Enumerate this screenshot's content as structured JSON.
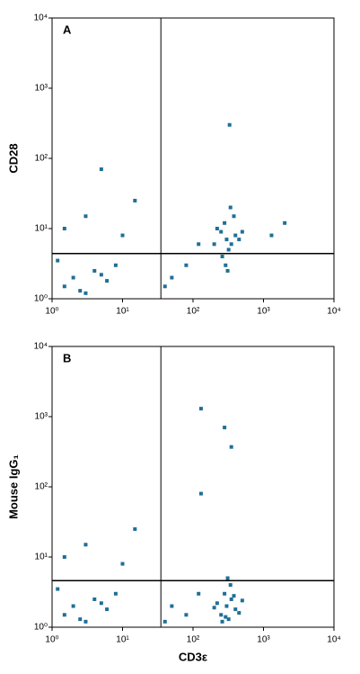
{
  "chart_data": [
    {
      "type": "scatter",
      "title": "A",
      "y_label": "CD28",
      "log": true,
      "color": "#1f6f96",
      "xlim": [
        1,
        10000
      ],
      "ylim": [
        1,
        10000
      ],
      "xticks": [
        {
          "value": 1,
          "label": "10⁰"
        },
        {
          "value": 10,
          "label": "10¹"
        },
        {
          "value": 100,
          "label": "10²"
        },
        {
          "value": 1000,
          "label": "10³"
        },
        {
          "value": 10000,
          "label": "10⁴"
        }
      ],
      "yticks": [
        {
          "value": 1,
          "label": "10⁰"
        },
        {
          "value": 10,
          "label": "10¹"
        },
        {
          "value": 100,
          "label": "10²"
        },
        {
          "value": 1000,
          "label": "10³"
        },
        {
          "value": 10000,
          "label": "10⁴"
        }
      ],
      "quadrant": {
        "x": 35,
        "y": 4.4
      },
      "x": [
        300,
        250,
        350,
        400,
        280,
        320,
        220,
        450,
        380,
        260,
        200,
        500,
        340,
        290,
        310,
        1.5,
        2,
        3,
        4,
        6,
        8,
        1.2,
        2.5,
        5,
        1.5,
        3,
        10,
        15,
        50,
        80,
        120,
        40,
        5,
        330,
        2000,
        1300
      ],
      "y": [
        7,
        9,
        6,
        8,
        12,
        5,
        10,
        7,
        15,
        4,
        6,
        9,
        20,
        3,
        2.5,
        1.5,
        2,
        1.2,
        2.5,
        1.8,
        3,
        3.5,
        1.3,
        2.2,
        10,
        15,
        8,
        25,
        2,
        3,
        6,
        1.5,
        70,
        300,
        12,
        8
      ]
    },
    {
      "type": "scatter",
      "title": "B",
      "y_label": "Mouse IgG₁",
      "x_label": "CD3ε",
      "log": true,
      "color": "#1f6f96",
      "xlim": [
        1,
        10000
      ],
      "ylim": [
        1,
        10000
      ],
      "xticks": [
        {
          "value": 1,
          "label": "10⁰"
        },
        {
          "value": 10,
          "label": "10¹"
        },
        {
          "value": 100,
          "label": "10²"
        },
        {
          "value": 1000,
          "label": "10³"
        },
        {
          "value": 10000,
          "label": "10⁴"
        }
      ],
      "yticks": [
        {
          "value": 1,
          "label": "10⁰"
        },
        {
          "value": 10,
          "label": "10¹"
        },
        {
          "value": 100,
          "label": "10²"
        },
        {
          "value": 1000,
          "label": "10³"
        },
        {
          "value": 10000,
          "label": "10⁴"
        }
      ],
      "quadrant": {
        "x": 35,
        "y": 4.6
      },
      "x": [
        300,
        250,
        350,
        400,
        280,
        320,
        220,
        450,
        380,
        260,
        200,
        500,
        340,
        290,
        310,
        1.5,
        2,
        3,
        4,
        6,
        8,
        1.2,
        2.5,
        5,
        1.5,
        3,
        10,
        15,
        50,
        80,
        120,
        40,
        130,
        280,
        350,
        130
      ],
      "y": [
        2,
        1.5,
        2.5,
        1.8,
        3,
        1.3,
        2.2,
        1.6,
        2.8,
        1.2,
        1.9,
        2.4,
        4,
        1.4,
        5,
        1.5,
        2,
        1.2,
        2.5,
        1.8,
        3,
        3.5,
        1.3,
        2.2,
        10,
        15,
        8,
        25,
        2,
        1.5,
        3,
        1.2,
        1300,
        700,
        370,
        80
      ]
    }
  ]
}
